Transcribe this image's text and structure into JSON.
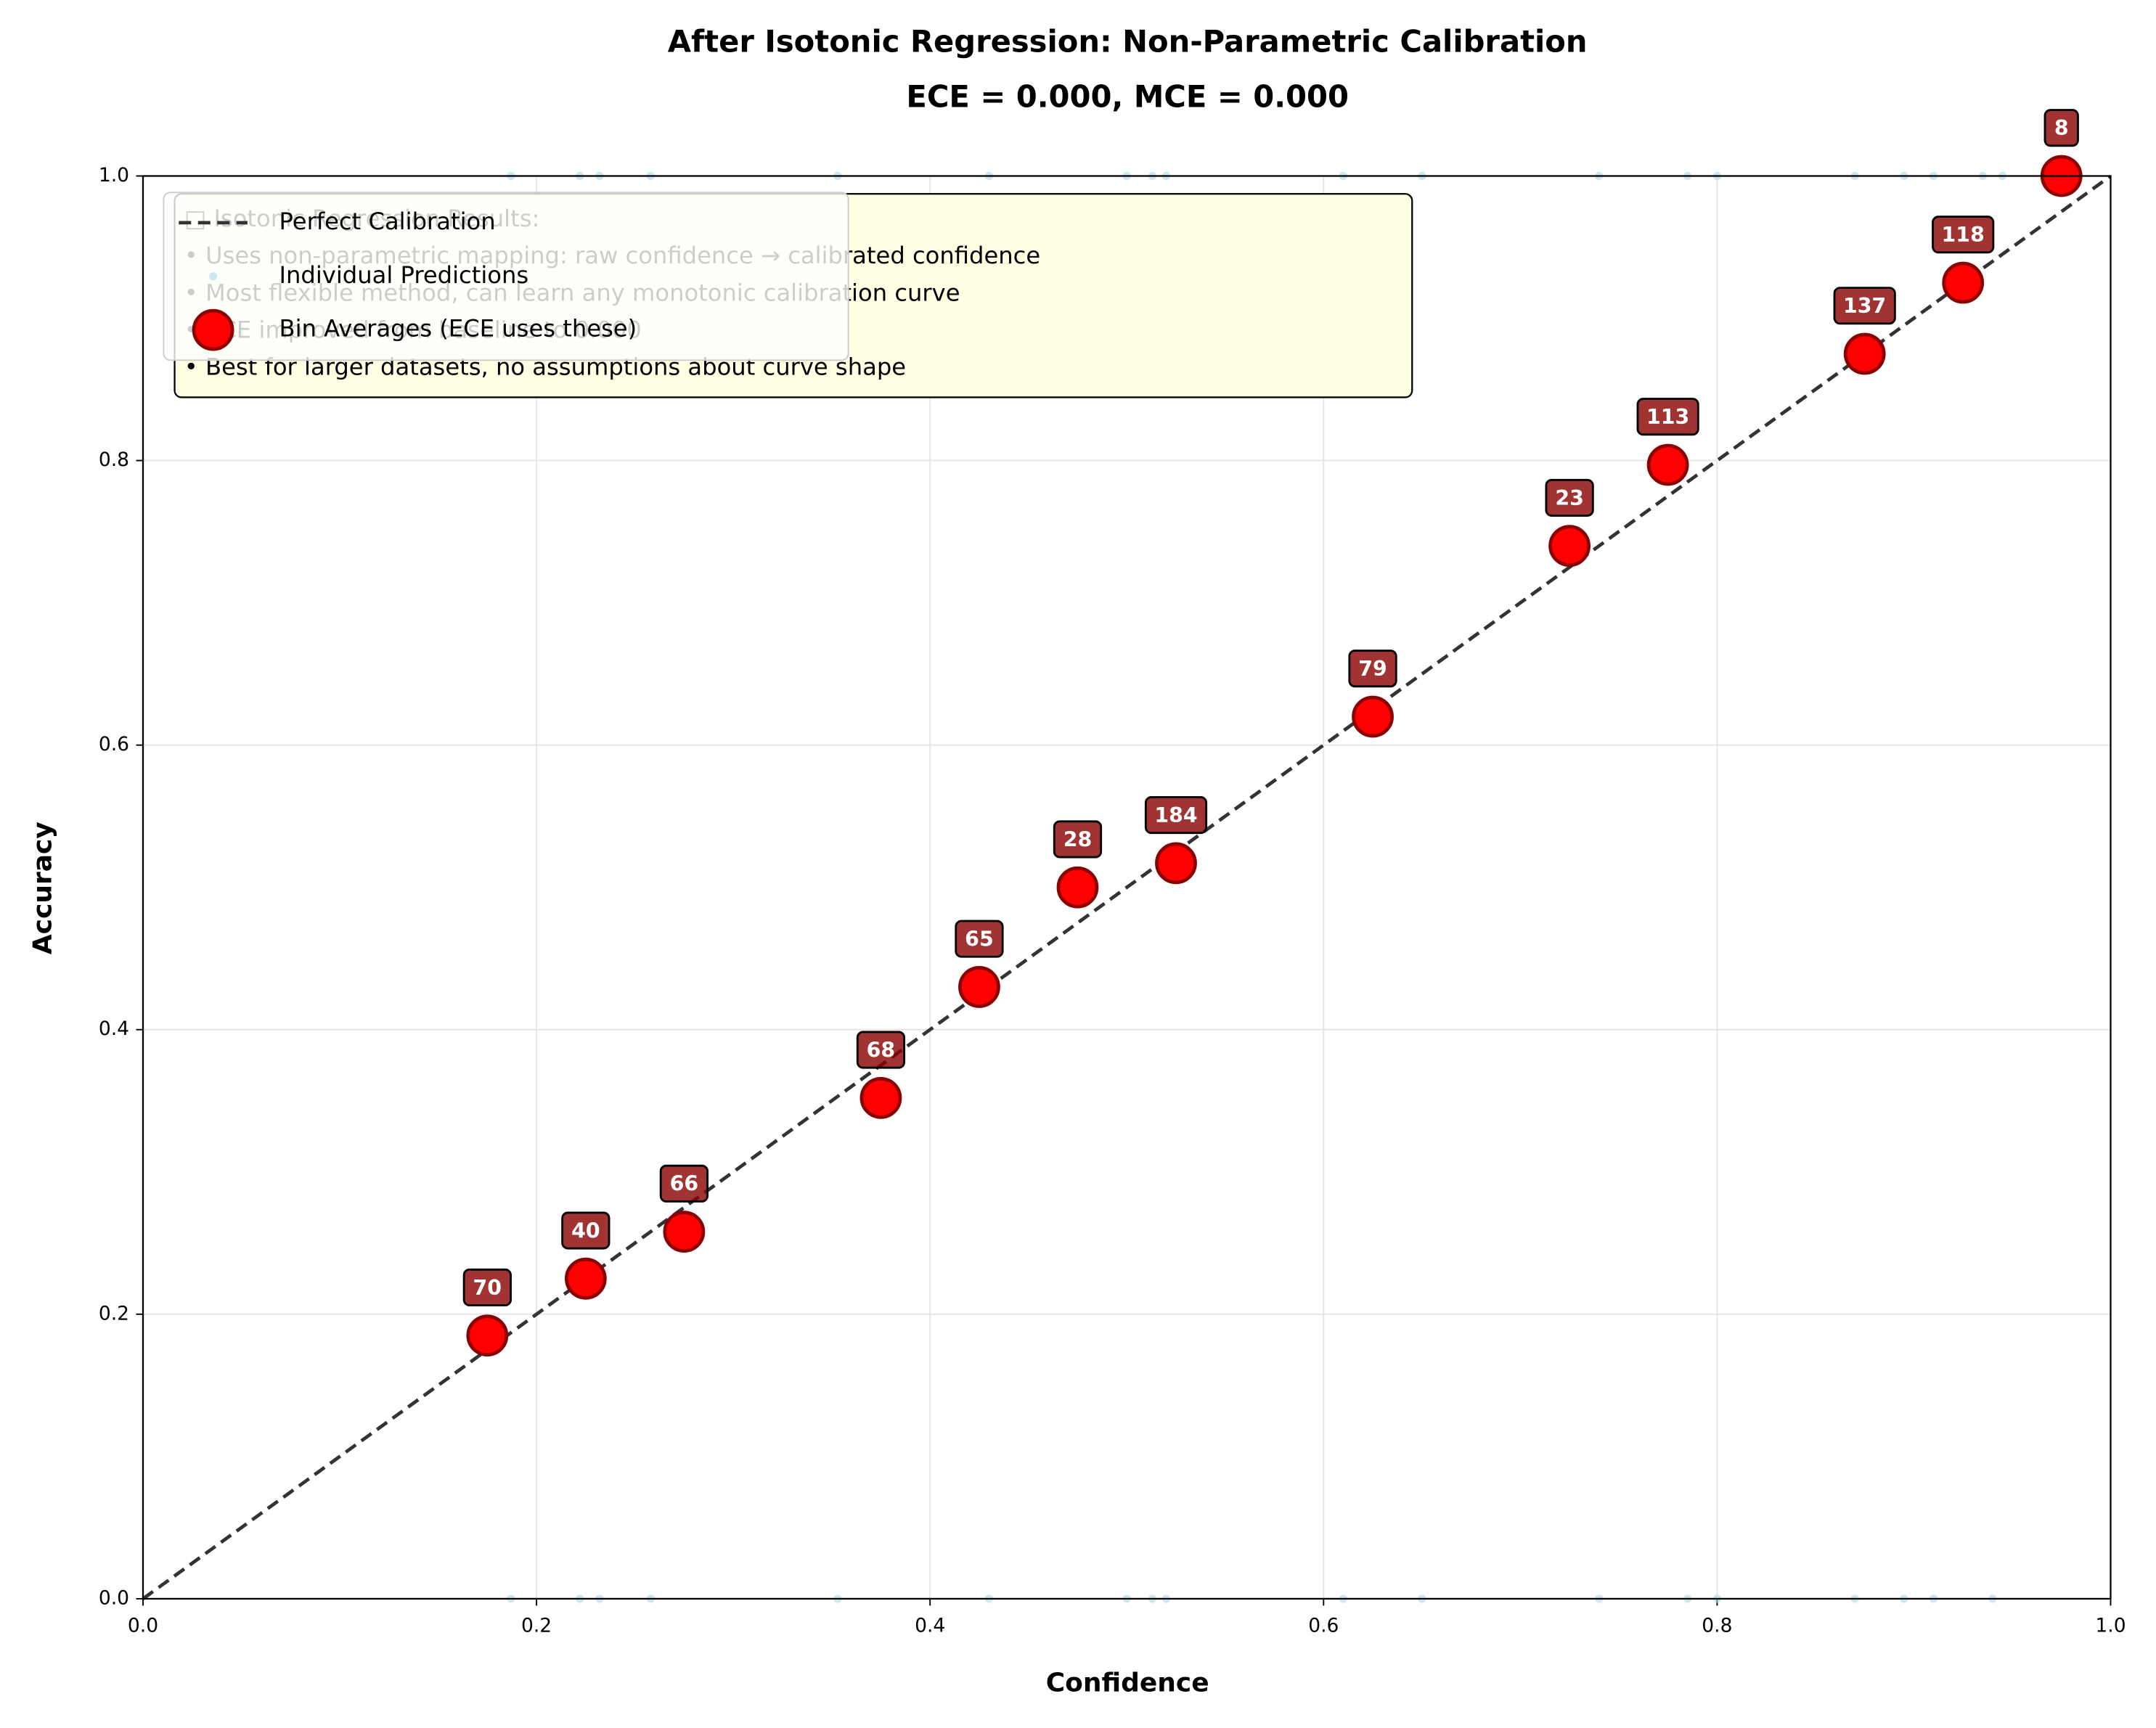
{
  "chart_data": {
    "type": "scatter",
    "title": "After Isotonic Regression: Non-Parametric Calibration",
    "subtitle": "ECE = 0.000, MCE = 0.000",
    "x_label": "Confidence",
    "y_label": "Accuracy",
    "xlim": [
      0,
      1
    ],
    "ylim": [
      0,
      1
    ],
    "xticks": [
      {
        "value": 0,
        "label": "0.0"
      },
      {
        "value": 0.2,
        "label": "0.2"
      },
      {
        "value": 0.4,
        "label": "0.4"
      },
      {
        "value": 0.6,
        "label": "0.6"
      },
      {
        "value": 0.8,
        "label": "0.8"
      },
      {
        "value": 1,
        "label": "1.0"
      }
    ],
    "yticks": [
      {
        "value": 0,
        "label": "0.0"
      },
      {
        "value": 0.2,
        "label": "0.2"
      },
      {
        "value": 0.4,
        "label": "0.4"
      },
      {
        "value": 0.6,
        "label": "0.6"
      },
      {
        "value": 0.8,
        "label": "0.8"
      },
      {
        "value": 1,
        "label": "1.0"
      }
    ],
    "grid": true,
    "legend": "upper left",
    "reference_line": {
      "name": "Perfect Calibration",
      "color": "#333333"
    },
    "series": [
      {
        "name": "Individual Predictions",
        "color": "#add8e6",
        "x": [
          0.187,
          0.222,
          0.232,
          0.258,
          0.353,
          0.43,
          0.5,
          0.513,
          0.52,
          0.61,
          0.65,
          0.74,
          0.785,
          0.8,
          0.87,
          0.895,
          0.91,
          0.935,
          0.945,
          0.187,
          0.222,
          0.232,
          0.258,
          0.353,
          0.43,
          0.5,
          0.513,
          0.52,
          0.61,
          0.65,
          0.74,
          0.785,
          0.8,
          0.87,
          0.895,
          0.91,
          0.94,
          0.035
        ],
        "values": [
          1,
          1,
          1,
          1,
          1,
          1,
          1,
          1,
          1,
          1,
          1,
          1,
          1,
          1,
          1,
          1,
          1,
          1,
          1,
          0,
          0,
          0,
          0,
          0,
          0,
          0,
          0,
          0,
          0,
          0,
          0,
          0,
          0,
          0,
          0,
          0,
          0,
          0.93
        ]
      },
      {
        "name": "Bin Averages (ECE uses these)",
        "color": "#ff0000",
        "x": [
          0.175,
          0.225,
          0.275,
          0.375,
          0.425,
          0.475,
          0.525,
          0.625,
          0.725,
          0.775,
          0.875,
          0.925,
          0.975
        ],
        "values": [
          0.185,
          0.225,
          0.258,
          0.352,
          0.43,
          0.5,
          0.517,
          0.62,
          0.74,
          0.797,
          0.875,
          0.925,
          1.0
        ],
        "counts": [
          70,
          40,
          66,
          68,
          65,
          28,
          184,
          79,
          23,
          113,
          137,
          118,
          8
        ]
      }
    ],
    "annotation": {
      "heading": "□ Isotonic Regression Results:",
      "lines": [
        "• Uses non-parametric mapping: raw confidence → calibrated confidence",
        "• Most flexible method, can learn any monotonic calibration curve",
        "• ECE improved from baseline to 0.000",
        "• Best for larger datasets, no assumptions about curve shape"
      ]
    }
  }
}
